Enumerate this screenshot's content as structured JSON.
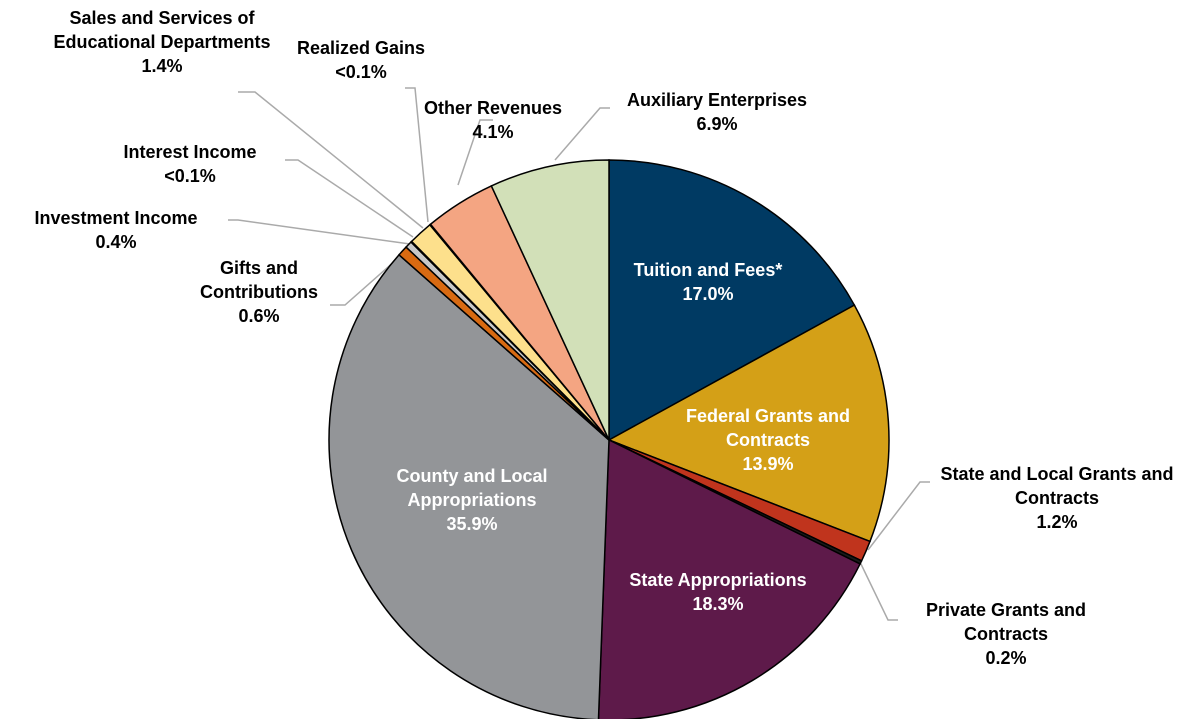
{
  "chart_data": {
    "type": "pie",
    "categories": [
      "Tuition and Fees*",
      "Federal Grants and Contracts",
      "State and Local Grants and Contracts",
      "Private Grants and Contracts",
      "State Appropriations",
      "County and Local Appropriations",
      "Gifts and Contributions",
      "Investment Income",
      "Interest Income",
      "Sales and Services of Educational Departments",
      "Realized Gains",
      "Other Revenues",
      "Auxiliary Enterprises"
    ],
    "values": [
      17.0,
      13.9,
      1.2,
      0.2,
      18.3,
      35.9,
      0.6,
      0.4,
      0.05,
      1.4,
      0.05,
      4.1,
      6.9
    ],
    "value_labels": [
      "17.0%",
      "13.9%",
      "1.2%",
      "0.2%",
      "18.3%",
      "35.9%",
      "0.6%",
      "0.4%",
      "<0.1%",
      "1.4%",
      "<0.1%",
      "4.1%",
      "6.9%"
    ],
    "colors": [
      "#003a63",
      "#d4a017",
      "#c0341d",
      "#1a1a1a",
      "#5e1a4a",
      "#939598",
      "#d86a12",
      "#c8c8c8",
      "#f2f2f2",
      "#fde08c",
      "#e8d9a0",
      "#f4a582",
      "#d2e0b8"
    ]
  }
}
